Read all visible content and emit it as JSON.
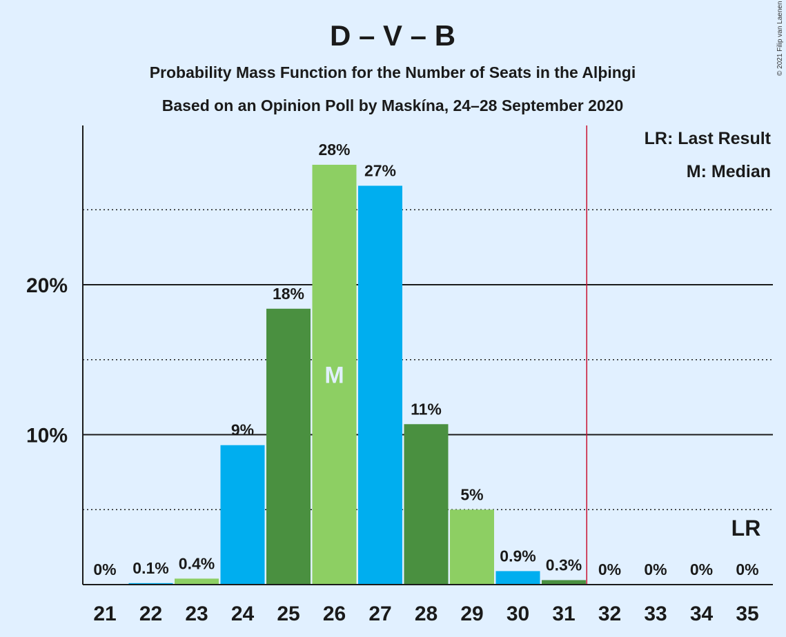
{
  "chart_data": {
    "type": "bar",
    "title": "D – V – B",
    "subtitle": "Probability Mass Function for the Number of Seats in the Alþingi",
    "subtitle2": "Based on an Opinion Poll by Maskína, 24–28 September 2020",
    "categories": [
      21,
      22,
      23,
      24,
      25,
      26,
      27,
      28,
      29,
      30,
      31,
      32,
      33,
      34,
      35
    ],
    "values": [
      0,
      0.1,
      0.4,
      9.3,
      18.4,
      28.0,
      26.6,
      10.7,
      5.0,
      0.9,
      0.3,
      0,
      0,
      0,
      0
    ],
    "labels": [
      "0%",
      "0.1%",
      "0.4%",
      "9%",
      "18%",
      "28%",
      "27%",
      "11%",
      "5%",
      "0.9%",
      "0.3%",
      "0%",
      "0%",
      "0%",
      "0%"
    ],
    "bar_colors": [
      "#00aeef",
      "#00aeef",
      "#8dcf63",
      "#00aeef",
      "#4a9040",
      "#8dcf63",
      "#00aeef",
      "#4a9040",
      "#8dcf63",
      "#00aeef",
      "#4a9040",
      "#00aeef",
      "#00aeef",
      "#00aeef",
      "#00aeef"
    ],
    "ylim": [
      0,
      30.5
    ],
    "y_major_ticks": [
      10,
      20
    ],
    "y_major_tick_labels": [
      "10%",
      "20%"
    ],
    "y_minor_gridlines": [
      5,
      15,
      25
    ],
    "median_seat": 26,
    "median_marker": "M",
    "last_result_seat": 35,
    "last_result_marker": "LR",
    "majority_line_after_seat": 31,
    "majority_line_color": "#c8102e",
    "legend": [
      "LR: Last Result",
      "M: Median"
    ],
    "legend_position": "top-right"
  },
  "copyright": "© 2021 Filip van Laenen"
}
